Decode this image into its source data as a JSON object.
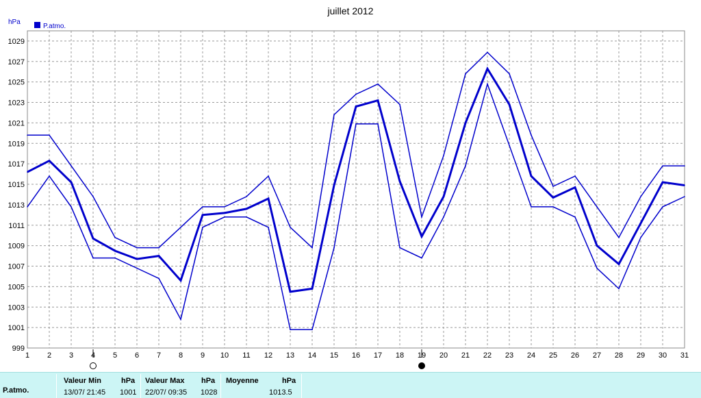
{
  "chart_data": {
    "type": "line",
    "title": "juillet 2012",
    "y_unit": "hPa",
    "legend": "P.atmo.",
    "legend_position": "top-left",
    "grid": true,
    "color": "#0000cc",
    "ylim": [
      999,
      1030
    ],
    "y_ticks": [
      999,
      1001,
      1003,
      1005,
      1007,
      1009,
      1011,
      1013,
      1015,
      1017,
      1019,
      1021,
      1023,
      1025,
      1027,
      1029
    ],
    "categories": [
      "1",
      "2",
      "3",
      "4",
      "5",
      "6",
      "7",
      "8",
      "9",
      "10",
      "11",
      "12",
      "13",
      "14",
      "15",
      "16",
      "17",
      "18",
      "19",
      "20",
      "21",
      "22",
      "23",
      "24",
      "25",
      "26",
      "27",
      "28",
      "29",
      "30",
      "31"
    ],
    "series": [
      {
        "role": "max",
        "values": [
          1019.8,
          1019.8,
          1016.8,
          1013.8,
          1009.8,
          1008.8,
          1008.8,
          1010.8,
          1012.8,
          1012.8,
          1013.8,
          1015.8,
          1010.8,
          1008.8,
          1021.8,
          1023.8,
          1024.8,
          1022.8,
          1011.8,
          1017.8,
          1025.8,
          1027.9,
          1025.8,
          1019.8,
          1014.8,
          1015.8,
          1012.8,
          1009.8,
          1013.8,
          1016.8,
          1016.8
        ]
      },
      {
        "role": "mean",
        "values": [
          1016.2,
          1017.3,
          1015.2,
          1009.7,
          1008.5,
          1007.7,
          1008.0,
          1005.6,
          1012.0,
          1012.2,
          1012.6,
          1013.6,
          1004.5,
          1004.8,
          1014.9,
          1022.6,
          1023.2,
          1015.3,
          1009.9,
          1013.8,
          1021.0,
          1026.3,
          1022.8,
          1015.8,
          1013.7,
          1014.7,
          1009.0,
          1007.2,
          1011.2,
          1015.2,
          1014.9
        ]
      },
      {
        "role": "min",
        "values": [
          1012.8,
          1015.8,
          1012.8,
          1007.8,
          1007.8,
          1006.8,
          1005.8,
          1001.8,
          1010.8,
          1011.8,
          1011.8,
          1010.8,
          1000.8,
          1000.8,
          1008.8,
          1020.9,
          1020.9,
          1008.8,
          1007.8,
          1011.8,
          1016.8,
          1024.8,
          1018.8,
          1012.8,
          1012.8,
          1011.8,
          1006.8,
          1004.8,
          1009.8,
          1012.8,
          1013.8
        ]
      }
    ],
    "moon_phases": [
      {
        "day": 4,
        "phase": "full-moon"
      },
      {
        "day": 19,
        "phase": "new-moon"
      }
    ]
  },
  "stats": {
    "row_label": "P.atmo.",
    "min": {
      "header": "Valeur Min",
      "unit": "hPa",
      "datetime": "13/07/  21:45",
      "value": "1001"
    },
    "max": {
      "header": "Valeur Max",
      "unit": "hPa",
      "datetime": "22/07/  09:35",
      "value": "1028"
    },
    "avg": {
      "header": "Moyenne",
      "unit": "hPa",
      "value": "1013.5"
    }
  }
}
